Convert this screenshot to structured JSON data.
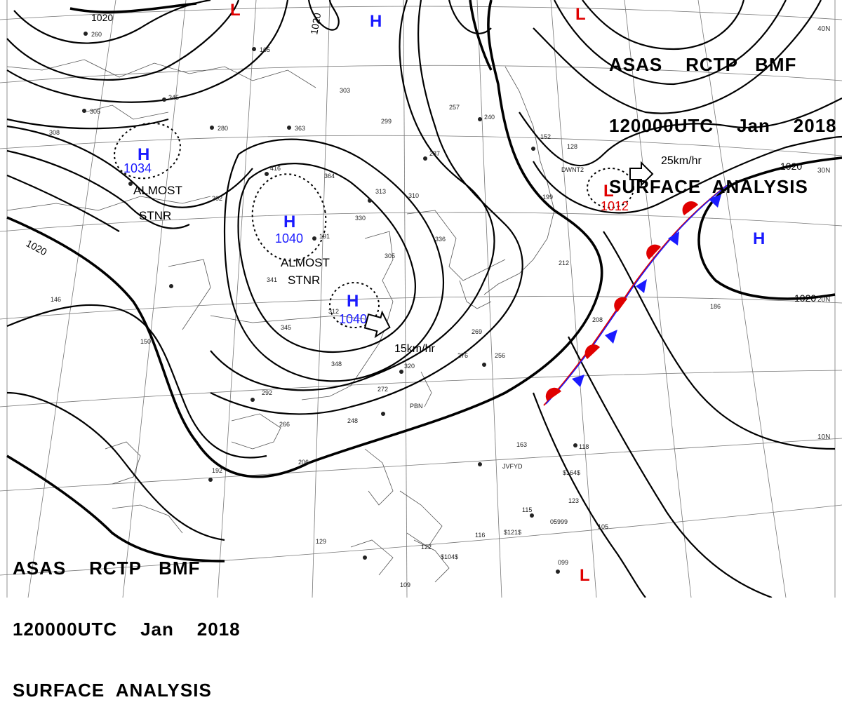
{
  "header": {
    "line1": "ASAS    RCTP   BMF",
    "line2": "120000UTC    Jan    2018",
    "line3": "SURFACE  ANALYSIS"
  },
  "colors": {
    "high": "#1a1aff",
    "low": "#e00000",
    "warm_front": "#e00000",
    "cold_front": "#1a1aff",
    "isobar": "#000000"
  },
  "latitude_labels": [
    "40N",
    "30N",
    "20N",
    "10N"
  ],
  "isobar_labels": [
    "1020",
    "1020",
    "1020",
    "1020",
    "1020"
  ],
  "pressure_systems": [
    {
      "type": "H",
      "value": "1034",
      "color": "#1a1aff",
      "note": "ALMOST STNR"
    },
    {
      "type": "H",
      "value": "1040",
      "color": "#1a1aff",
      "note": "ALMOST STNR"
    },
    {
      "type": "H",
      "value": "1040",
      "color": "#1a1aff",
      "note": ""
    },
    {
      "type": "L",
      "value": "1012",
      "color": "#e00000",
      "note": ""
    },
    {
      "type": "H",
      "value": "",
      "color": "#1a1aff",
      "note": ""
    },
    {
      "type": "H",
      "value": "",
      "color": "#1a1aff",
      "note": ""
    },
    {
      "type": "L",
      "value": "",
      "color": "#e00000",
      "note": ""
    },
    {
      "type": "L",
      "value": "",
      "color": "#e00000",
      "note": ""
    },
    {
      "type": "L",
      "value": "",
      "color": "#e00000",
      "note": ""
    }
  ],
  "motion_labels": [
    "15km/hr",
    "25km/hr"
  ],
  "almost_stnr": [
    "ALMOST",
    "STNR"
  ],
  "station_values": [
    "260",
    "165",
    "345",
    "305",
    "308",
    "280",
    "363",
    "303",
    "257",
    "240",
    "299",
    "287",
    "310",
    "313",
    "364",
    "416",
    "302",
    "191",
    "330",
    "305",
    "336",
    "341",
    "345",
    "312",
    "269",
    "276",
    "256",
    "348",
    "320",
    "272",
    "292",
    "266",
    "248",
    "206",
    "192",
    "163",
    "118",
    "115",
    "123",
    "129",
    "116",
    "105",
    "099",
    "109",
    "146",
    "150",
    "186",
    "208",
    "212",
    "199",
    "152",
    "128",
    "122"
  ],
  "station_ids": [
    "DWNT2",
    "JVFYD",
    "PBN",
    "$164$",
    "$121$",
    "$104$",
    "05999"
  ]
}
